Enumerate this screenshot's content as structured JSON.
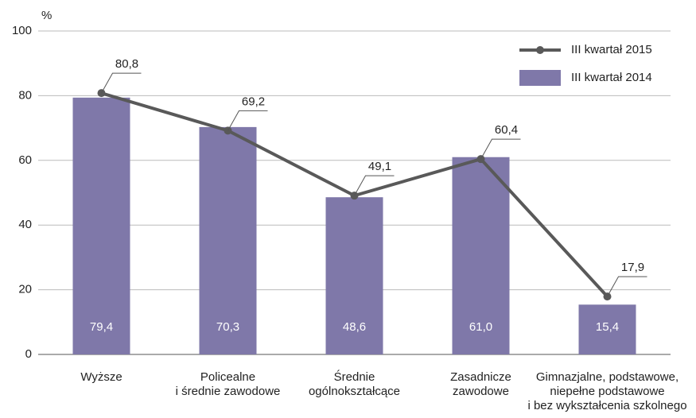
{
  "chart_data": {
    "type": "bar",
    "y_label": "%",
    "categories": [
      "Wyższe",
      "Policealne\ni średnie zawodowe",
      "Średnie\nogólnokształcące",
      "Zasadnicze\nzawodowe",
      "Gimnazjalne, podstawowe,\nniepełne podstawowe\ni bez wykształcenia szkolnego"
    ],
    "series": [
      {
        "name": "III kwartał 2014",
        "type": "bar",
        "color": "#7f78a9",
        "values": [
          79.4,
          70.3,
          48.6,
          61.0,
          15.4
        ],
        "value_labels": [
          "79,4",
          "70,3",
          "48,6",
          "61,0",
          "15,4"
        ]
      },
      {
        "name": "III kwartał 2015",
        "type": "line",
        "color": "#595959",
        "values": [
          80.8,
          69.2,
          49.1,
          60.4,
          17.9
        ],
        "value_labels": [
          "80,8",
          "69,2",
          "49,1",
          "60,4",
          "17,9"
        ]
      }
    ],
    "ylim": [
      0,
      100
    ],
    "yticks": [
      0,
      20,
      40,
      60,
      80,
      100
    ],
    "grid": true
  }
}
